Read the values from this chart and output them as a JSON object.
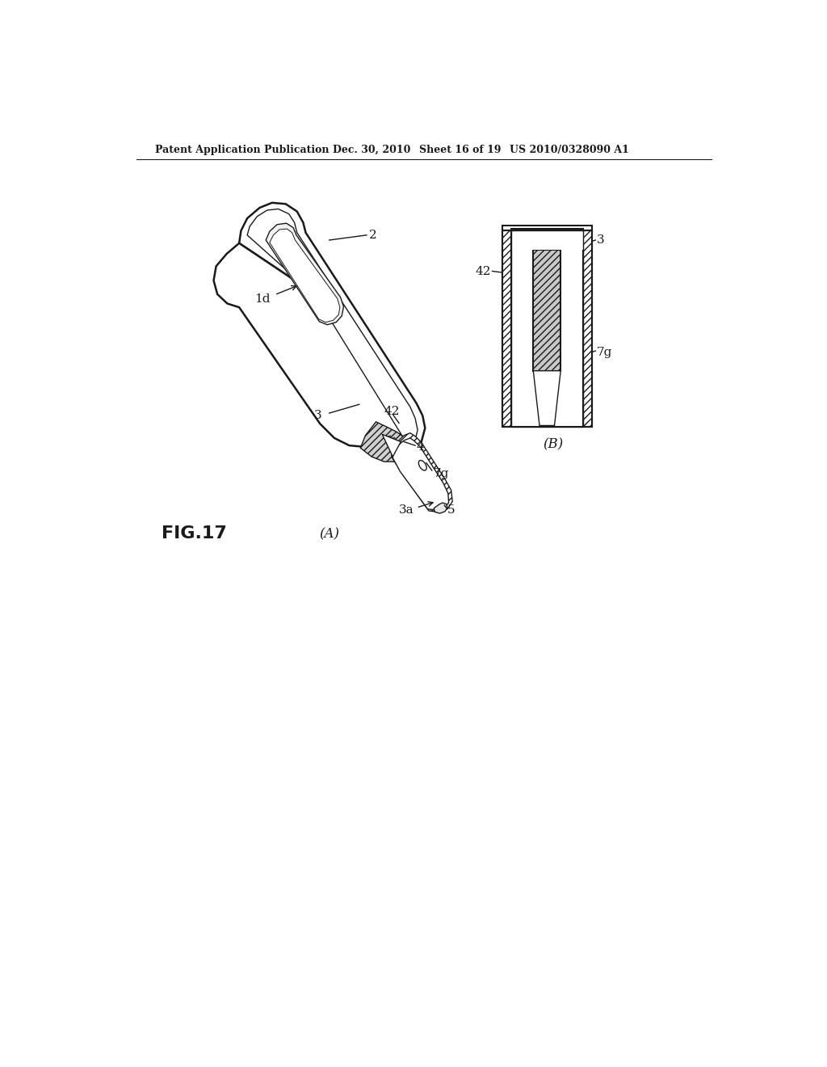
{
  "bg_color": "#ffffff",
  "header_text": "Patent Application Publication",
  "header_date": "Dec. 30, 2010",
  "header_sheet": "Sheet 16 of 19",
  "header_patent": "US 2010/0328090 A1",
  "fig_label": "FIG.17",
  "sub_a": "(A)",
  "sub_b": "(B)",
  "line_color": "#1a1a1a",
  "label_2": "2",
  "label_3": "3",
  "label_3a": "3a",
  "label_4": "4",
  "label_5": "5",
  "label_7g": "7g",
  "label_42": "42",
  "label_1d": "1d"
}
